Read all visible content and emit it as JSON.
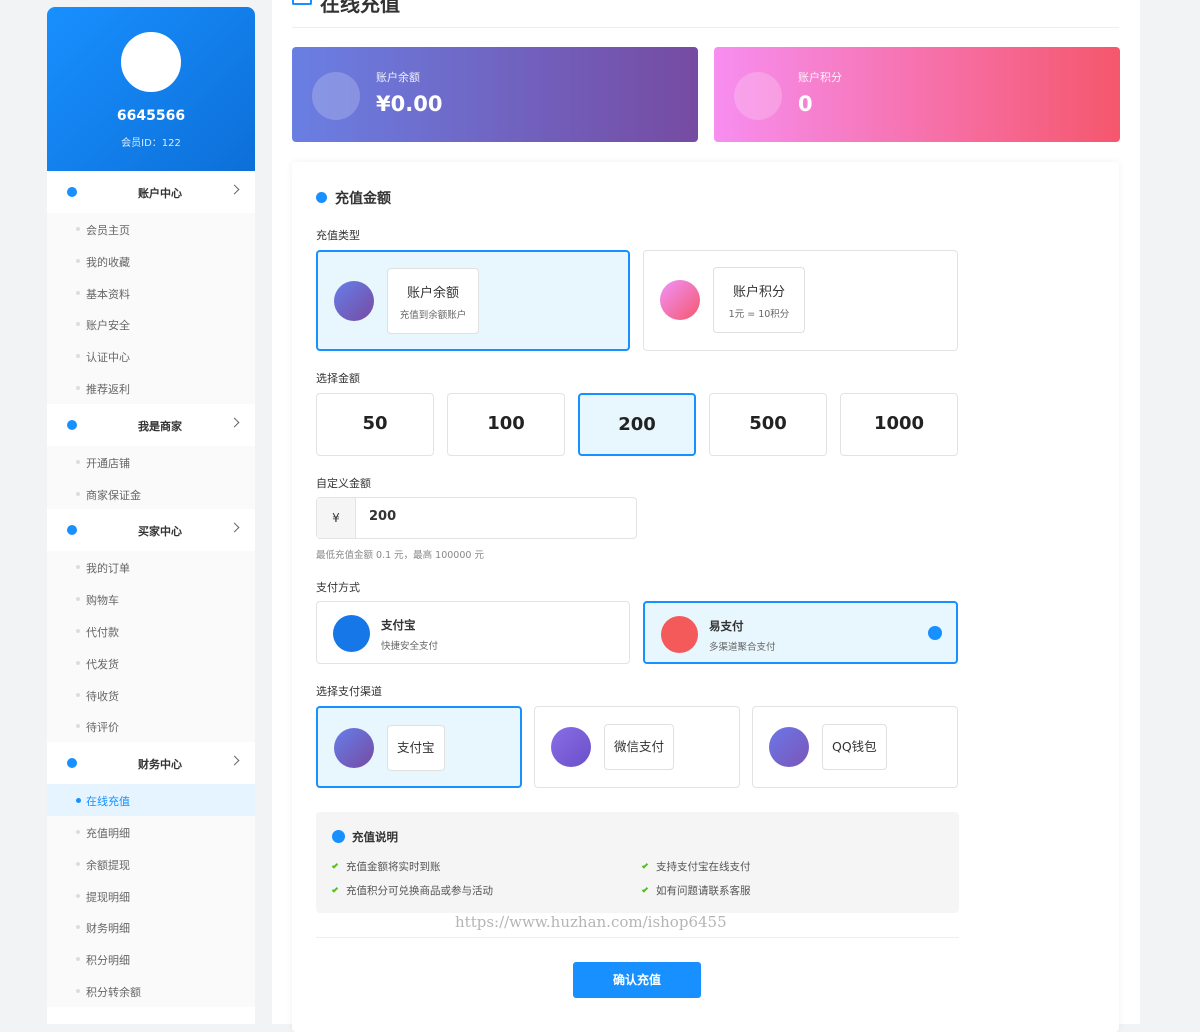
{
  "sidebar": {
    "profile": {
      "name": "6645566",
      "member_id": "会员ID：122"
    },
    "menu": [
      {
        "title": "账户中心",
        "items": [
          "会员主页",
          "我的收藏",
          "基本资料",
          "账户安全",
          "认证中心",
          "推荐返利"
        ]
      },
      {
        "title": "我是商家",
        "items": [
          "开通店铺",
          "商家保证金"
        ]
      },
      {
        "title": "买家中心",
        "items": [
          "我的订单",
          "购物车",
          "代付款",
          "代发货",
          "待收货",
          "待评价"
        ]
      },
      {
        "title": "财务中心",
        "items": [
          "在线充值",
          "充值明细",
          "余额提现",
          "提现明细",
          "财务明细",
          "积分明细",
          "积分转余额"
        ]
      }
    ]
  },
  "header": {
    "title": "在线充值"
  },
  "stats": [
    {
      "label": "账户余额",
      "value": "¥0.00"
    },
    {
      "label": "账户积分",
      "value": "0"
    }
  ],
  "form": {
    "section_title": "充值金额",
    "type_label": "充值类型",
    "types": [
      {
        "title": "账户余额",
        "desc": "充值到余额账户"
      },
      {
        "title": "账户积分",
        "desc": "1元 = 10积分"
      }
    ],
    "amount_label": "选择金额",
    "amounts": [
      50,
      100,
      200,
      500,
      1000
    ],
    "custom_label": "自定义金额",
    "currency": "¥",
    "custom_value": "200",
    "hint": "最低充值金额 0.1 元，最高 100000 元",
    "method_label": "支付方式",
    "methods": [
      {
        "title": "支付宝",
        "desc": "快捷安全支付"
      },
      {
        "title": "易支付",
        "desc": "多渠道聚合支付"
      }
    ],
    "channel_label": "选择支付渠道",
    "channels": [
      "支付宝",
      "微信支付",
      "QQ钱包"
    ],
    "notes": {
      "title": "充值说明",
      "items": [
        "充值金额将实时到账",
        "支持支付宝在线支付",
        "充值积分可兑换商品或参与活动",
        "如有问题请联系客服"
      ]
    },
    "submit": "确认充值"
  },
  "watermark": "https://www.huzhan.com/ishop6455"
}
